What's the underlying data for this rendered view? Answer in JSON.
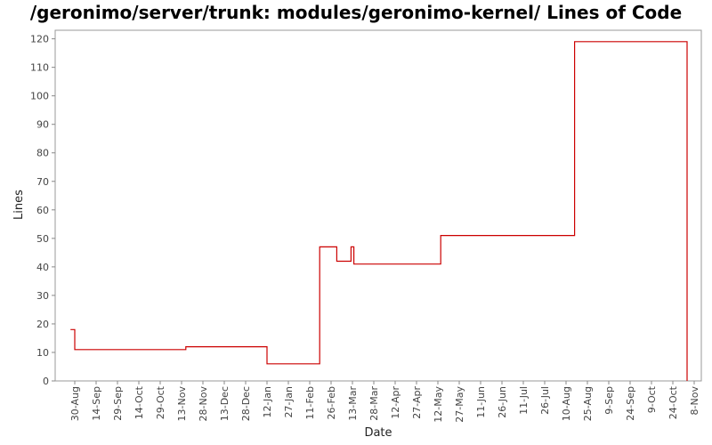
{
  "chart_data": {
    "type": "line",
    "title": "/geronimo/server/trunk: modules/geronimo-kernel/ Lines of Code",
    "xlabel": "Date",
    "ylabel": "Lines",
    "ylim": [
      0,
      123
    ],
    "y_ticks": [
      0,
      10,
      20,
      30,
      40,
      50,
      60,
      70,
      80,
      90,
      100,
      110,
      120
    ],
    "x_ticks": [
      "30-Aug",
      "14-Sep",
      "29-Sep",
      "14-Oct",
      "29-Oct",
      "13-Nov",
      "28-Nov",
      "13-Dec",
      "28-Dec",
      "12-Jan",
      "27-Jan",
      "11-Feb",
      "26-Feb",
      "13-Mar",
      "28-Mar",
      "12-Apr",
      "27-Apr",
      "12-May",
      "27-May",
      "11-Jun",
      "26-Jun",
      "11-Jul",
      "26-Jul",
      "10-Aug",
      "25-Aug",
      "9-Sep",
      "24-Sep",
      "9-Oct",
      "24-Oct",
      "8-Nov"
    ],
    "grid": false,
    "line_color": "#cc0000",
    "step": true,
    "series": [
      {
        "x": [
          "27-Aug",
          "30-Aug",
          "16-Nov",
          "12-Jan",
          "18-Feb",
          "2-Mar",
          "12-Mar",
          "14-Mar",
          "14-May",
          "16-Aug",
          "3-Nov",
          "3-Nov"
        ],
        "values": [
          18,
          11,
          12,
          6,
          47,
          42,
          47,
          41,
          51,
          119,
          119,
          0
        ]
      }
    ]
  }
}
